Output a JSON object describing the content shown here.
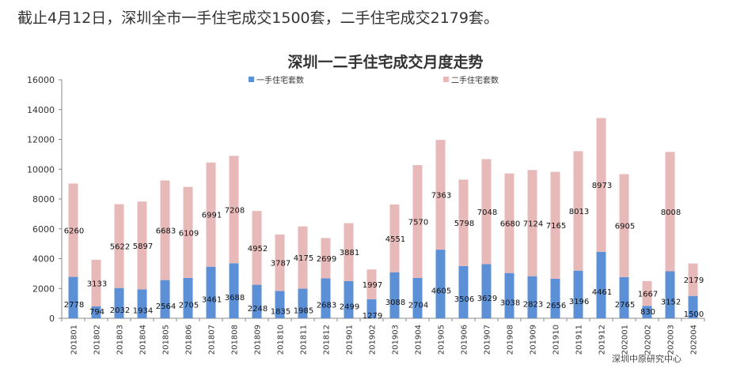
{
  "headline": "截止4月12日，深圳全市一手住宅成交1500套，二手住宅成交2179套。",
  "source": "深圳中原研究中心",
  "chart_data": {
    "type": "bar",
    "stacked": true,
    "title": "深圳一二手住宅成交月度走势",
    "xlabel": "",
    "ylabel": "",
    "ylim": [
      0,
      16000
    ],
    "yticks": [
      0,
      2000,
      4000,
      6000,
      8000,
      10000,
      12000,
      14000,
      16000
    ],
    "grid": false,
    "legend": "top-center",
    "categories": [
      "201801",
      "201802",
      "201803",
      "201804",
      "201805",
      "201806",
      "201807",
      "201808",
      "201809",
      "201810",
      "201811",
      "201812",
      "201901",
      "201902",
      "201903",
      "201904",
      "201905",
      "201906",
      "201907",
      "201908",
      "201909",
      "201910",
      "201911",
      "201912",
      "202001",
      "202002",
      "202003",
      "202004"
    ],
    "series": [
      {
        "name": "一手住宅套数",
        "color": "#5b8fd6",
        "values": [
          2778,
          794,
          2032,
          1934,
          2564,
          2705,
          3461,
          3688,
          2248,
          1835,
          1985,
          2683,
          2499,
          1279,
          3088,
          2704,
          4605,
          3506,
          3629,
          3038,
          2823,
          2656,
          3196,
          4461,
          2765,
          830,
          3152,
          1500
        ]
      },
      {
        "name": "二手住宅套数",
        "color": "#e8b9b9",
        "values": [
          6260,
          3133,
          5622,
          5897,
          6683,
          6109,
          6991,
          7208,
          4952,
          3787,
          4175,
          2699,
          3881,
          1997,
          4551,
          7570,
          7363,
          5798,
          7048,
          6680,
          7124,
          7165,
          8013,
          8973,
          6905,
          1667,
          8008,
          2179
        ]
      }
    ]
  }
}
